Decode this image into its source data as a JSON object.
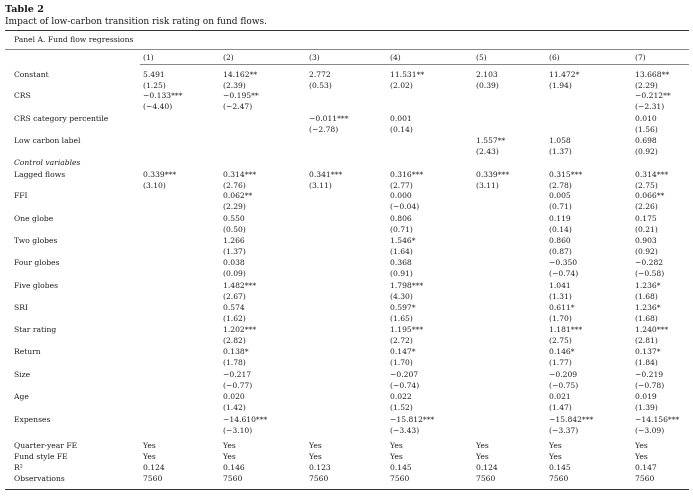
{
  "table": {
    "label": "Table 2",
    "caption": "Impact of low-carbon transition risk rating on fund flows.",
    "panel": "Panel A. Fund flow regressions",
    "columns": [
      "(1)",
      "(2)",
      "(3)",
      "(4)",
      "(5)",
      "(6)",
      "(7)"
    ],
    "rows": [
      {
        "label": "Constant",
        "italic": false,
        "cells": [
          [
            "5.491",
            "(1.25)"
          ],
          [
            "14.162**",
            "(2.39)"
          ],
          [
            "2.772",
            "(0.53)"
          ],
          [
            "11.531**",
            "(2.02)"
          ],
          [
            "2.103",
            "(0.39)"
          ],
          [
            "11.472*",
            "(1.94)"
          ],
          [
            "13.668**",
            "(2.29)"
          ]
        ]
      },
      {
        "label": "CRS",
        "italic": false,
        "cells": [
          [
            "−0.133***",
            "(−4.40)"
          ],
          [
            "−0.195**",
            "(−2.47)"
          ],
          [
            "",
            ""
          ],
          [
            "",
            ""
          ],
          [
            "",
            ""
          ],
          [
            "",
            ""
          ],
          [
            "−0.212**",
            "(−2.31)"
          ]
        ]
      },
      {
        "label": "CRS category percentile",
        "italic": false,
        "cells": [
          [
            "",
            ""
          ],
          [
            "",
            ""
          ],
          [
            "−0.011***",
            "(−2.78)"
          ],
          [
            "0.001",
            "(0.14)"
          ],
          [
            "",
            ""
          ],
          [
            "",
            ""
          ],
          [
            "0.010",
            "(1.56)"
          ]
        ]
      },
      {
        "label": "Low carbon label",
        "italic": false,
        "cells": [
          [
            "",
            ""
          ],
          [
            "",
            ""
          ],
          [
            "",
            ""
          ],
          [
            "",
            ""
          ],
          [
            "1.557**",
            "(2.43)"
          ],
          [
            "1.058",
            "(1.37)"
          ],
          [
            "0.698",
            "(0.92)"
          ]
        ]
      },
      {
        "label": "Control variables",
        "italic": true,
        "cells": []
      },
      {
        "label": "Lagged flows",
        "italic": false,
        "cells": [
          [
            "0.339***",
            "(3.10)"
          ],
          [
            "0.314***",
            "(2.76)"
          ],
          [
            "0.341***",
            "(3.11)"
          ],
          [
            "0.316***",
            "(2.77)"
          ],
          [
            "0.339***",
            "(3.11)"
          ],
          [
            "0.315***",
            "(2.78)"
          ],
          [
            "0.314***",
            "(2.75)"
          ]
        ]
      },
      {
        "label": "FFI",
        "italic": false,
        "cells": [
          [
            "",
            ""
          ],
          [
            "0.062**",
            "(2.29)"
          ],
          [
            "",
            ""
          ],
          [
            "0.000",
            "(−0.04)"
          ],
          [
            "",
            ""
          ],
          [
            "0.005",
            "(0.71)"
          ],
          [
            "0.066**",
            "(2.26)"
          ]
        ]
      },
      {
        "label": "One globe",
        "italic": false,
        "cells": [
          [
            "",
            ""
          ],
          [
            "0.550",
            "(0.50)"
          ],
          [
            "",
            ""
          ],
          [
            "0.806",
            "(0.71)"
          ],
          [
            "",
            ""
          ],
          [
            "0.119",
            "(0.14)"
          ],
          [
            "0.175",
            "(0.21)"
          ]
        ]
      },
      {
        "label": "Two globes",
        "italic": false,
        "cells": [
          [
            "",
            ""
          ],
          [
            "1.266",
            "(1.37)"
          ],
          [
            "",
            ""
          ],
          [
            "1.546*",
            "(1.64)"
          ],
          [
            "",
            ""
          ],
          [
            "0.860",
            "(0.87)"
          ],
          [
            "0.903",
            "(0.92)"
          ]
        ]
      },
      {
        "label": "Four globes",
        "italic": false,
        "cells": [
          [
            "",
            ""
          ],
          [
            "0.038",
            "(0.09)"
          ],
          [
            "",
            ""
          ],
          [
            "0.368",
            "(0.91)"
          ],
          [
            "",
            ""
          ],
          [
            "−0.350",
            "(−0.74)"
          ],
          [
            "−0.282",
            "(−0.58)"
          ]
        ]
      },
      {
        "label": "Five globes",
        "italic": false,
        "cells": [
          [
            "",
            ""
          ],
          [
            "1.482***",
            "(2.67)"
          ],
          [
            "",
            ""
          ],
          [
            "1.798***",
            "(4.30)"
          ],
          [
            "",
            ""
          ],
          [
            "1.041",
            "(1.31)"
          ],
          [
            "1.236*",
            "(1.68)"
          ]
        ]
      },
      {
        "label": "SRI",
        "italic": false,
        "cells": [
          [
            "",
            ""
          ],
          [
            "0.574",
            "(1.62)"
          ],
          [
            "",
            ""
          ],
          [
            "0.597*",
            "(1.65)"
          ],
          [
            "",
            ""
          ],
          [
            "0.611*",
            "(1.70)"
          ],
          [
            "1.236*",
            "(1.68)"
          ]
        ]
      },
      {
        "label": "Star rating",
        "italic": false,
        "cells": [
          [
            "",
            ""
          ],
          [
            "1.202***",
            "(2.82)"
          ],
          [
            "",
            ""
          ],
          [
            "1.195***",
            "(2.72)"
          ],
          [
            "",
            ""
          ],
          [
            "1.181***",
            "(2.75)"
          ],
          [
            "1.240***",
            "(2.81)"
          ]
        ]
      },
      {
        "label": "Return",
        "italic": false,
        "cells": [
          [
            "",
            ""
          ],
          [
            "0.138*",
            "(1.78)"
          ],
          [
            "",
            ""
          ],
          [
            "0.147*",
            "(1.70)"
          ],
          [
            "",
            ""
          ],
          [
            "0.146*",
            "(1.77)"
          ],
          [
            "0.137*",
            "(1.84)"
          ]
        ]
      },
      {
        "label": "Size",
        "italic": false,
        "cells": [
          [
            "",
            ""
          ],
          [
            "−0.217",
            "(−0.77)"
          ],
          [
            "",
            ""
          ],
          [
            "−0.207",
            "(−0.74)"
          ],
          [
            "",
            ""
          ],
          [
            "−0.209",
            "(−0.75)"
          ],
          [
            "−0.219",
            "(−0.78)"
          ]
        ]
      },
      {
        "label": "Age",
        "italic": false,
        "cells": [
          [
            "",
            ""
          ],
          [
            "0.020",
            "(1.42)"
          ],
          [
            "",
            ""
          ],
          [
            "0.022",
            "(1.52)"
          ],
          [
            "",
            ""
          ],
          [
            "0.021",
            "(1.47)"
          ],
          [
            "0.019",
            "(1.39)"
          ]
        ]
      },
      {
        "label": "Expenses",
        "italic": false,
        "cells": [
          [
            "",
            ""
          ],
          [
            "−14.610***",
            "(−3.10)"
          ],
          [
            "",
            ""
          ],
          [
            "−15.812***",
            "(−3.43)"
          ],
          [
            "",
            ""
          ],
          [
            "−15.842***",
            "(−3.37)"
          ],
          [
            "−14.156***",
            "(−3.09)"
          ]
        ]
      }
    ],
    "footer_rows": [
      {
        "label": "Quarter-year FE",
        "cells": [
          "Yes",
          "Yes",
          "Yes",
          "Yes",
          "Yes",
          "Yes",
          "Yes"
        ]
      },
      {
        "label": "Fund style FE",
        "cells": [
          "Yes",
          "Yes",
          "Yes",
          "Yes",
          "Yes",
          "Yes",
          "Yes"
        ]
      },
      {
        "label": "R²",
        "cells": [
          "0.124",
          "0.146",
          "0.123",
          "0.145",
          "0.124",
          "0.145",
          "0.147"
        ]
      },
      {
        "label": "Observations",
        "cells": [
          "7560",
          "7560",
          "7560",
          "7560",
          "7560",
          "7560",
          "7560"
        ]
      }
    ]
  }
}
